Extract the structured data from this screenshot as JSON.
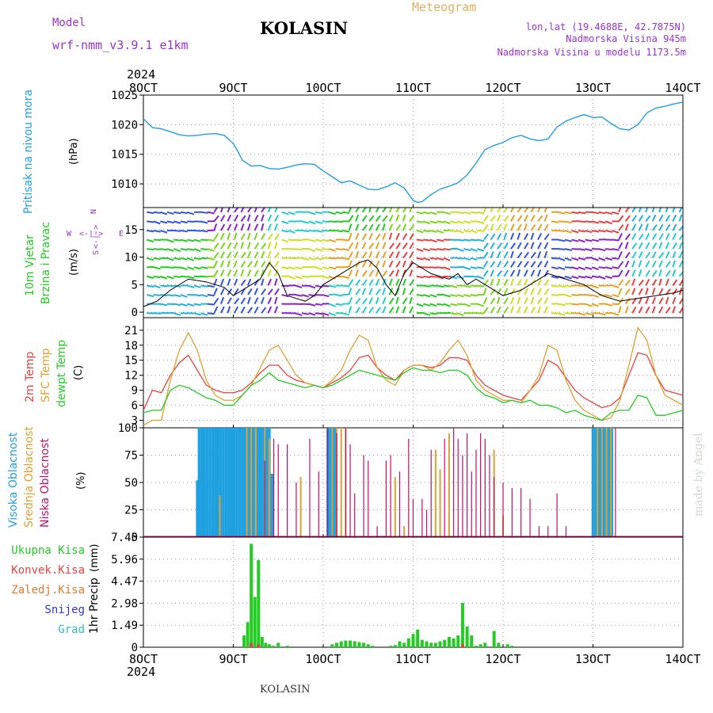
{
  "header": {
    "model_label": "Model",
    "model_name": "wrf-nmm_v3.9.1  e1km",
    "title": "KOLASIN",
    "meteogram_label": "Meteogram",
    "coords": "lon,lat (19.4688E, 42.7875N)",
    "altitude": "Nadmorska Visina 945m",
    "model_altitude": "Nadmorska Visina u modelu 1173.5m",
    "year_top": "2024",
    "year_bottom": "2024",
    "footer_title": "KOLASIN",
    "watermark": "made by Angel"
  },
  "colors": {
    "pressure": "#1fa0e0",
    "green": "#22cc22",
    "red": "#e84040",
    "orange": "#e0a030",
    "magenta": "#c0106a",
    "purple": "#9933cc",
    "blue": "#1fa0e0",
    "snow": "#3333cc",
    "grad": "#33bbbb"
  },
  "x_ticks": [
    "8OCT",
    "9OCT",
    "10OCT",
    "11OCT",
    "12OCT",
    "13OCT",
    "14OCT"
  ],
  "chart_data": [
    {
      "type": "line",
      "panel": "pressure",
      "ylabel": "Pritisak na nivou mora",
      "unit": "(hPa)",
      "ylim": [
        1006,
        1025
      ],
      "yticks": [
        1010,
        1015,
        1020,
        1025
      ],
      "xlim": [
        0,
        6
      ],
      "grid": true,
      "series": [
        {
          "name": "Pritisak na nivou mora",
          "x": [
            0,
            0.1,
            0.2,
            0.3,
            0.4,
            0.5,
            0.6,
            0.7,
            0.8,
            0.9,
            1.0,
            1.05,
            1.1,
            1.2,
            1.3,
            1.4,
            1.5,
            1.6,
            1.7,
            1.8,
            1.9,
            2.0,
            2.1,
            2.2,
            2.3,
            2.4,
            2.5,
            2.6,
            2.7,
            2.8,
            2.9,
            3.0,
            3.05,
            3.1,
            3.2,
            3.3,
            3.4,
            3.5,
            3.6,
            3.7,
            3.8,
            3.9,
            4.0,
            4.1,
            4.2,
            4.3,
            4.4,
            4.5,
            4.6,
            4.7,
            4.8,
            4.9,
            5.0,
            5.1,
            5.2,
            5.3,
            5.4,
            5.5,
            5.6,
            5.7,
            5.8,
            5.9,
            6.0
          ],
          "values": [
            1021,
            1019.5,
            1019.3,
            1018.8,
            1018.3,
            1018.1,
            1018.2,
            1018.4,
            1018.5,
            1018.2,
            1016.8,
            1015.5,
            1014,
            1013,
            1013.1,
            1012.6,
            1012.5,
            1012.8,
            1013.2,
            1013.4,
            1013.3,
            1012.2,
            1011.2,
            1010.2,
            1010.5,
            1009.8,
            1009.1,
            1009,
            1009.5,
            1010.2,
            1009.3,
            1007.2,
            1006.9,
            1007,
            1008.2,
            1009.1,
            1009.6,
            1010.2,
            1011.5,
            1013.5,
            1015.8,
            1016.5,
            1017,
            1017.8,
            1018.2,
            1017.6,
            1017.3,
            1017.6,
            1019.6,
            1020.6,
            1021.2,
            1021.7,
            1021.2,
            1021.3,
            1020.2,
            1019.3,
            1019.1,
            1020,
            1022,
            1022.8,
            1023.1,
            1023.5,
            1023.8
          ]
        }
      ]
    },
    {
      "type": "line",
      "panel": "wind",
      "ylabel": "10m Vjetar",
      "ylabel2": "Brzina i Pravac",
      "unit": "(m/s)",
      "compass": {
        "n": "N",
        "w": "W",
        "e": "E",
        "s": "S",
        "arrows": "<-|->"
      },
      "ylim": [
        -1,
        19
      ],
      "yticks": [
        0,
        5,
        10,
        15
      ],
      "xlim": [
        0,
        6
      ],
      "grid": true,
      "series": [
        {
          "name": "speed",
          "x": [
            0,
            0.15,
            0.3,
            0.5,
            0.7,
            0.9,
            1.0,
            1.2,
            1.3,
            1.4,
            1.5,
            1.6,
            1.8,
            1.9,
            2.0,
            2.2,
            2.4,
            2.5,
            2.6,
            2.7,
            2.8,
            2.9,
            3.0,
            3.2,
            3.4,
            3.5,
            3.6,
            3.7,
            3.8,
            4.0,
            4.2,
            4.5,
            4.7,
            4.9,
            5.1,
            5.3,
            5.5,
            5.7,
            5.9,
            6.0
          ],
          "values": [
            1,
            2,
            4,
            6,
            5.5,
            4.5,
            3,
            5,
            6,
            9,
            7,
            3,
            2,
            3,
            5,
            7,
            9,
            9.5,
            8,
            5,
            3,
            7,
            9,
            7,
            6,
            7,
            5,
            6,
            5,
            3,
            4,
            7,
            6,
            5,
            3,
            2,
            2.5,
            3,
            3.5,
            4
          ]
        }
      ]
    },
    {
      "type": "line",
      "panel": "temperature",
      "ylabel": "2m Temp",
      "ylabel2": "SFC Temp",
      "ylabel3": "dewpt Temp",
      "unit": "(C)",
      "ylim": [
        1.5,
        23.5
      ],
      "yticks": [
        3,
        6,
        9,
        12,
        15,
        18,
        21
      ],
      "xlim": [
        0,
        6
      ],
      "grid": true,
      "series": [
        {
          "name": "2m Temp",
          "x": [
            0,
            0.1,
            0.2,
            0.3,
            0.4,
            0.5,
            0.6,
            0.7,
            0.8,
            0.9,
            1.0,
            1.1,
            1.2,
            1.3,
            1.4,
            1.5,
            1.6,
            1.7,
            1.8,
            1.9,
            2.0,
            2.1,
            2.2,
            2.3,
            2.4,
            2.5,
            2.6,
            2.7,
            2.8,
            2.9,
            3.0,
            3.1,
            3.2,
            3.3,
            3.4,
            3.5,
            3.6,
            3.7,
            3.8,
            3.9,
            4.0,
            4.1,
            4.2,
            4.3,
            4.4,
            4.5,
            4.6,
            4.7,
            4.8,
            4.9,
            5.0,
            5.1,
            5.2,
            5.3,
            5.4,
            5.5,
            5.6,
            5.7,
            5.8,
            5.9,
            6.0
          ],
          "values": [
            5,
            9,
            8.5,
            12,
            14.5,
            16,
            13,
            10,
            9,
            8.5,
            8.5,
            9,
            10.5,
            12.5,
            14,
            14,
            12,
            11,
            10.5,
            10,
            9.5,
            10.5,
            11.5,
            13,
            15.5,
            16,
            13.5,
            12,
            11,
            13,
            14,
            14,
            13.5,
            14,
            15.5,
            15.5,
            15,
            12,
            10,
            9,
            8,
            7.5,
            7,
            9,
            11,
            15,
            14,
            11.5,
            9,
            7.5,
            6.5,
            5.5,
            6,
            7.5,
            12,
            16.5,
            16,
            12,
            9,
            8.5,
            8
          ]
        },
        {
          "name": "SFC Temp",
          "x": [
            0,
            0.1,
            0.2,
            0.3,
            0.4,
            0.5,
            0.6,
            0.7,
            0.8,
            0.9,
            1.0,
            1.1,
            1.2,
            1.3,
            1.4,
            1.5,
            1.6,
            1.7,
            1.8,
            1.9,
            2.0,
            2.1,
            2.2,
            2.3,
            2.4,
            2.5,
            2.6,
            2.7,
            2.8,
            2.9,
            3.0,
            3.1,
            3.2,
            3.3,
            3.4,
            3.5,
            3.6,
            3.7,
            3.8,
            3.9,
            4.0,
            4.1,
            4.2,
            4.3,
            4.4,
            4.5,
            4.6,
            4.7,
            4.8,
            4.9,
            5.0,
            5.1,
            5.2,
            5.3,
            5.4,
            5.5,
            5.6,
            5.7,
            5.8,
            5.9,
            6.0
          ],
          "values": [
            2,
            3,
            3,
            11,
            17,
            20.5,
            17,
            11,
            8,
            7,
            7,
            8,
            10,
            13.5,
            17,
            18,
            15,
            12,
            10.5,
            10,
            9.5,
            11,
            13,
            17,
            20,
            19,
            13.5,
            11,
            10,
            13,
            14,
            14,
            13,
            14.5,
            17,
            19,
            16,
            11,
            9,
            8,
            7,
            7,
            6.5,
            9,
            12,
            18,
            17,
            11,
            7,
            5,
            4,
            3,
            3.5,
            7,
            14,
            21.5,
            19,
            12,
            8,
            7,
            6
          ]
        },
        {
          "name": "dewpt Temp",
          "x": [
            0,
            0.1,
            0.2,
            0.3,
            0.4,
            0.5,
            0.6,
            0.7,
            0.8,
            0.9,
            1.0,
            1.1,
            1.2,
            1.3,
            1.4,
            1.5,
            1.6,
            1.7,
            1.8,
            1.9,
            2.0,
            2.1,
            2.2,
            2.3,
            2.4,
            2.5,
            2.6,
            2.7,
            2.8,
            2.9,
            3.0,
            3.1,
            3.2,
            3.3,
            3.4,
            3.5,
            3.6,
            3.7,
            3.8,
            3.9,
            4.0,
            4.1,
            4.2,
            4.3,
            4.4,
            4.5,
            4.6,
            4.7,
            4.8,
            4.9,
            5.0,
            5.1,
            5.2,
            5.3,
            5.4,
            5.5,
            5.6,
            5.7,
            5.8,
            5.9,
            6.0
          ],
          "values": [
            4.5,
            5,
            5,
            9,
            10,
            9.5,
            8.5,
            7.5,
            7,
            6,
            6,
            8,
            10,
            11,
            12.5,
            11,
            10.5,
            10,
            9.5,
            10,
            9.5,
            10,
            11,
            12,
            13,
            12.5,
            12,
            11.5,
            11,
            12.5,
            13.5,
            13,
            13,
            12.5,
            13,
            13,
            12,
            9.5,
            8,
            7.5,
            6.5,
            7,
            6.5,
            7,
            6,
            6,
            5.5,
            4.5,
            5,
            4,
            3.5,
            3,
            4.5,
            5,
            5,
            8,
            7.5,
            4,
            4,
            4.5,
            5
          ]
        }
      ]
    },
    {
      "type": "bar",
      "panel": "clouds",
      "ylabel": "Visoka Oblacnost",
      "ylabel2": "Srednja Oblacnost",
      "ylabel3": "Niska Oblacnost",
      "unit": "(%)",
      "ylim": [
        0,
        100
      ],
      "yticks": [
        0,
        25,
        50,
        75,
        100
      ],
      "xlim": [
        0,
        6
      ],
      "grid": true,
      "series": [
        {
          "name": "Visoka Oblacnost",
          "x": [
            0.6,
            0.62,
            0.65,
            0.68,
            0.71,
            0.74,
            0.77,
            0.8,
            0.83,
            0.86,
            0.89,
            0.92,
            0.95,
            0.98,
            1.01,
            1.04,
            1.07,
            1.1,
            1.13,
            1.16,
            1.19,
            1.22,
            1.25,
            1.28,
            1.31,
            1.34,
            1.37,
            1.4,
            1.43,
            2.05,
            2.08,
            2.11,
            2.14,
            5.0,
            5.03,
            5.06,
            5.09,
            5.12,
            5.15,
            5.18,
            5.21
          ],
          "values": [
            52,
            100,
            100,
            100,
            100,
            100,
            100,
            100,
            100,
            100,
            100,
            100,
            100,
            100,
            100,
            100,
            100,
            100,
            100,
            100,
            100,
            100,
            100,
            100,
            100,
            100,
            100,
            100,
            58,
            100,
            100,
            100,
            100,
            100,
            100,
            100,
            100,
            100,
            100,
            100,
            100
          ]
        },
        {
          "name": "Srednja Oblacnost",
          "x": [
            0.85,
            1.15,
            1.2,
            1.25,
            1.35,
            1.4,
            1.75,
            2.1,
            2.15,
            2.2,
            2.25,
            2.8,
            2.9,
            3.25,
            3.3,
            3.4,
            3.9,
            4.0,
            5.05,
            5.1,
            5.15,
            5.2
          ],
          "values": [
            38,
            100,
            100,
            100,
            100,
            90,
            55,
            100,
            100,
            100,
            100,
            55,
            10,
            80,
            62,
            95,
            80,
            20,
            100,
            100,
            100,
            100
          ]
        },
        {
          "name": "Niska Oblacnost",
          "x": [
            1.35,
            1.45,
            1.5,
            1.6,
            1.7,
            1.85,
            1.95,
            2.05,
            2.15,
            2.25,
            2.3,
            2.35,
            2.45,
            2.5,
            2.6,
            2.7,
            2.75,
            2.85,
            2.95,
            3.0,
            3.1,
            3.15,
            3.2,
            3.35,
            3.45,
            3.5,
            3.55,
            3.6,
            3.65,
            3.7,
            3.75,
            3.8,
            3.85,
            3.9,
            4.0,
            4.1,
            4.2,
            4.3,
            4.4,
            4.5,
            4.6,
            4.7,
            5.25
          ],
          "values": [
            70,
            90,
            85,
            85,
            50,
            90,
            60,
            100,
            95,
            100,
            85,
            40,
            75,
            70,
            10,
            70,
            75,
            60,
            90,
            35,
            35,
            25,
            80,
            90,
            100,
            90,
            75,
            95,
            60,
            80,
            95,
            90,
            75,
            55,
            50,
            45,
            45,
            35,
            10,
            10,
            40,
            10,
            100
          ]
        }
      ]
    },
    {
      "type": "bar",
      "panel": "precip",
      "ylabel": "1hr Precip",
      "unit": "(mm)",
      "legend": [
        "Ukupna Kisa",
        "Konvek.Kisa",
        "Zaledj.Kisa",
        "Snijeg",
        "Grad"
      ],
      "ylim": [
        0,
        7.45
      ],
      "yticks": [
        0,
        1.49,
        2.98,
        4.47,
        5.96,
        7.45
      ],
      "xlim": [
        0,
        6
      ],
      "grid": true,
      "series": [
        {
          "name": "Ukupna Kisa",
          "x": [
            1.12,
            1.16,
            1.2,
            1.24,
            1.28,
            1.32,
            1.36,
            1.4,
            1.44,
            1.5,
            1.6,
            2.1,
            2.15,
            2.2,
            2.25,
            2.3,
            2.35,
            2.4,
            2.45,
            2.5,
            2.55,
            2.75,
            2.8,
            2.85,
            2.9,
            2.95,
            3.0,
            3.05,
            3.1,
            3.15,
            3.2,
            3.25,
            3.3,
            3.35,
            3.4,
            3.45,
            3.5,
            3.55,
            3.6,
            3.65,
            3.7,
            3.75,
            3.8,
            3.9,
            3.95,
            4.05,
            4.1
          ],
          "values": [
            0.8,
            1.7,
            7,
            3.4,
            5.9,
            0.7,
            0.3,
            0.2,
            0.1,
            0.3,
            0.1,
            0.2,
            0.3,
            0.4,
            0.45,
            0.45,
            0.4,
            0.35,
            0.3,
            0.2,
            0.1,
            0.1,
            0.15,
            0.4,
            0.3,
            0.6,
            0.9,
            1.2,
            0.5,
            0.4,
            0.3,
            0.3,
            0.4,
            0.5,
            0.7,
            0.6,
            0.8,
            3.0,
            1.4,
            0.8,
            0.1,
            0.2,
            0.3,
            1.1,
            0.3,
            0.2,
            0.1
          ]
        },
        {
          "name": "Konvek.Kisa",
          "x": [
            1.2,
            1.28,
            3.55
          ],
          "values": [
            0.3,
            0.2,
            0.2
          ]
        }
      ]
    }
  ]
}
